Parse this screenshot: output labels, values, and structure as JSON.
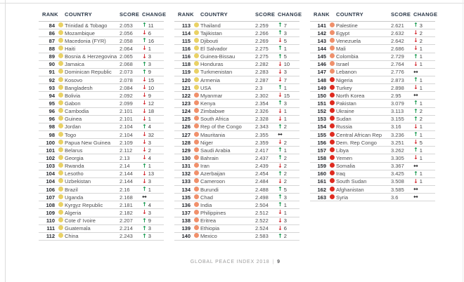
{
  "footer": {
    "title": "GLOBAL PEACE INDEX 2018",
    "separator": "|",
    "page_number": "9"
  },
  "colors": {
    "header_text": "#2b3848",
    "band_medium": "#e9d165",
    "band_low": "#f0906b",
    "band_very_low": "#df2a1f",
    "change_up": "#0f9649",
    "change_down": "#d2232a",
    "change_steady": "#2a2a2c"
  },
  "table": {
    "headers": [
      "RANK",
      "COUNTRY",
      "SCORE",
      "CHANGE"
    ],
    "arrow_glyphs": {
      "up": "↑",
      "down": "↓",
      "steady": "↔"
    },
    "columns": [
      {
        "rows": [
          {
            "rank": "84",
            "country": "Trinidad & Tobago",
            "score": "2.053",
            "change_dir": "up",
            "change_value": "11",
            "band": "medium"
          },
          {
            "rank": "86",
            "country": "Mozambique",
            "score": "2.056",
            "change_dir": "down",
            "change_value": "6",
            "band": "medium"
          },
          {
            "rank": "87",
            "country": "Macedonia (FYR)",
            "score": "2.058",
            "change_dir": "up",
            "change_value": "16",
            "band": "medium"
          },
          {
            "rank": "88",
            "country": "Haiti",
            "score": "2.064",
            "change_dir": "down",
            "change_value": "1",
            "band": "medium"
          },
          {
            "rank": "89",
            "country": "Bosnia & Herzegovina",
            "score": "2.065",
            "change_dir": "down",
            "change_value": "3",
            "band": "medium"
          },
          {
            "rank": "90",
            "country": "Jamaica",
            "score": "2.068",
            "change_dir": "up",
            "change_value": "3",
            "band": "medium"
          },
          {
            "rank": "91",
            "country": "Dominican Republic",
            "score": "2.073",
            "change_dir": "up",
            "change_value": "9",
            "band": "medium"
          },
          {
            "rank": "92",
            "country": "Kosovo",
            "score": "2.078",
            "change_dir": "down",
            "change_value": "15",
            "band": "medium"
          },
          {
            "rank": "93",
            "country": "Bangladesh",
            "score": "2.084",
            "change_dir": "down",
            "change_value": "10",
            "band": "medium"
          },
          {
            "rank": "94",
            "country": "Bolivia",
            "score": "2.092",
            "change_dir": "down",
            "change_value": "9",
            "band": "medium"
          },
          {
            "rank": "95",
            "country": "Gabon",
            "score": "2.099",
            "change_dir": "down",
            "change_value": "12",
            "band": "medium"
          },
          {
            "rank": "96",
            "country": "Cambodia",
            "score": "2.101",
            "change_dir": "down",
            "change_value": "18",
            "band": "medium"
          },
          {
            "rank": "96",
            "country": "Guinea",
            "score": "2.101",
            "change_dir": "down",
            "change_value": "1",
            "band": "medium"
          },
          {
            "rank": "98",
            "country": "Jordan",
            "score": "2.104",
            "change_dir": "up",
            "change_value": "4",
            "band": "medium"
          },
          {
            "rank": "98",
            "country": "Togo",
            "score": "2.104",
            "change_dir": "down",
            "change_value": "32",
            "band": "medium"
          },
          {
            "rank": "100",
            "country": "Papua New Guinea",
            "score": "2.109",
            "change_dir": "down",
            "change_value": "3",
            "band": "medium"
          },
          {
            "rank": "101",
            "country": "Belarus",
            "score": "2.112",
            "change_dir": "down",
            "change_value": "2",
            "band": "medium"
          },
          {
            "rank": "102",
            "country": "Georgia",
            "score": "2.13",
            "change_dir": "down",
            "change_value": "4",
            "band": "medium"
          },
          {
            "rank": "103",
            "country": "Rwanda",
            "score": "2.14",
            "change_dir": "up",
            "change_value": "1",
            "band": "medium"
          },
          {
            "rank": "104",
            "country": "Lesotho",
            "score": "2.144",
            "change_dir": "down",
            "change_value": "13",
            "band": "medium"
          },
          {
            "rank": "104",
            "country": "Uzbekistan",
            "score": "2.144",
            "change_dir": "down",
            "change_value": "3",
            "band": "medium"
          },
          {
            "rank": "106",
            "country": "Brazil",
            "score": "2.16",
            "change_dir": "up",
            "change_value": "1",
            "band": "medium"
          },
          {
            "rank": "107",
            "country": "Uganda",
            "score": "2.168",
            "change_dir": "steady",
            "change_value": "",
            "band": "medium"
          },
          {
            "rank": "108",
            "country": "Kyrgyz Republic",
            "score": "2.181",
            "change_dir": "up",
            "change_value": "4",
            "band": "medium"
          },
          {
            "rank": "109",
            "country": "Algeria",
            "score": "2.182",
            "change_dir": "down",
            "change_value": "3",
            "band": "medium"
          },
          {
            "rank": "110",
            "country": "Cote d' Ivoire",
            "score": "2.207",
            "change_dir": "up",
            "change_value": "9",
            "band": "medium"
          },
          {
            "rank": "111",
            "country": "Guatemala",
            "score": "2.214",
            "change_dir": "up",
            "change_value": "3",
            "band": "medium"
          },
          {
            "rank": "112",
            "country": "China",
            "score": "2.243",
            "change_dir": "up",
            "change_value": "3",
            "band": "medium"
          }
        ]
      },
      {
        "rows": [
          {
            "rank": "113",
            "country": "Thailand",
            "score": "2.259",
            "change_dir": "up",
            "change_value": "7",
            "band": "medium"
          },
          {
            "rank": "114",
            "country": "Tajikistan",
            "score": "2.266",
            "change_dir": "up",
            "change_value": "3",
            "band": "medium"
          },
          {
            "rank": "115",
            "country": "Djibouti",
            "score": "2.269",
            "change_dir": "down",
            "change_value": "5",
            "band": "medium"
          },
          {
            "rank": "116",
            "country": "El Salvador",
            "score": "2.275",
            "change_dir": "up",
            "change_value": "1",
            "band": "medium"
          },
          {
            "rank": "116",
            "country": "Guinea-Bissau",
            "score": "2.275",
            "change_dir": "up",
            "change_value": "5",
            "band": "medium"
          },
          {
            "rank": "118",
            "country": "Honduras",
            "score": "2.282",
            "change_dir": "down",
            "change_value": "10",
            "band": "medium"
          },
          {
            "rank": "119",
            "country": "Turkmenistan",
            "score": "2.283",
            "change_dir": "down",
            "change_value": "3",
            "band": "medium"
          },
          {
            "rank": "120",
            "country": "Armenia",
            "score": "2.287",
            "change_dir": "down",
            "change_value": "7",
            "band": "medium"
          },
          {
            "rank": "121",
            "country": "USA",
            "score": "2.3",
            "change_dir": "up",
            "change_value": "1",
            "band": "medium"
          },
          {
            "rank": "122",
            "country": "Myanmar",
            "score": "2.302",
            "change_dir": "down",
            "change_value": "15",
            "band": "low"
          },
          {
            "rank": "123",
            "country": "Kenya",
            "score": "2.354",
            "change_dir": "up",
            "change_value": "3",
            "band": "low"
          },
          {
            "rank": "124",
            "country": "Zimbabwe",
            "score": "2.326",
            "change_dir": "down",
            "change_value": "1",
            "band": "low"
          },
          {
            "rank": "125",
            "country": "South Africa",
            "score": "2.328",
            "change_dir": "down",
            "change_value": "1",
            "band": "low"
          },
          {
            "rank": "126",
            "country": "Rep of the Congo",
            "score": "2.343",
            "change_dir": "up",
            "change_value": "2",
            "band": "low"
          },
          {
            "rank": "127",
            "country": "Mauritania",
            "score": "2.355",
            "change_dir": "steady",
            "change_value": "",
            "band": "low"
          },
          {
            "rank": "128",
            "country": "Niger",
            "score": "2.359",
            "change_dir": "down",
            "change_value": "2",
            "band": "low"
          },
          {
            "rank": "129",
            "country": "Saudi Arabia",
            "score": "2.417",
            "change_dir": "up",
            "change_value": "1",
            "band": "low"
          },
          {
            "rank": "130",
            "country": "Bahrain",
            "score": "2.437",
            "change_dir": "up",
            "change_value": "2",
            "band": "low"
          },
          {
            "rank": "131",
            "country": "Iran",
            "score": "2.439",
            "change_dir": "down",
            "change_value": "2",
            "band": "low"
          },
          {
            "rank": "132",
            "country": "Azerbaijan",
            "score": "2.454",
            "change_dir": "up",
            "change_value": "2",
            "band": "low"
          },
          {
            "rank": "133",
            "country": "Cameroon",
            "score": "2.484",
            "change_dir": "down",
            "change_value": "2",
            "band": "low"
          },
          {
            "rank": "134",
            "country": "Burundi",
            "score": "2.488",
            "change_dir": "up",
            "change_value": "5",
            "band": "low"
          },
          {
            "rank": "135",
            "country": "Chad",
            "score": "2.498",
            "change_dir": "up",
            "change_value": "3",
            "band": "low"
          },
          {
            "rank": "136",
            "country": "India",
            "score": "2.504",
            "change_dir": "up",
            "change_value": "1",
            "band": "low"
          },
          {
            "rank": "137",
            "country": "Philippines",
            "score": "2.512",
            "change_dir": "down",
            "change_value": "1",
            "band": "low"
          },
          {
            "rank": "138",
            "country": "Eritrea",
            "score": "2.522",
            "change_dir": "down",
            "change_value": "3",
            "band": "low"
          },
          {
            "rank": "139",
            "country": "Ethiopia",
            "score": "2.524",
            "change_dir": "down",
            "change_value": "6",
            "band": "low"
          },
          {
            "rank": "140",
            "country": "Mexico",
            "score": "2.583",
            "change_dir": "up",
            "change_value": "2",
            "band": "low"
          }
        ]
      },
      {
        "rows": [
          {
            "rank": "141",
            "country": "Palestine",
            "score": "2.621",
            "change_dir": "up",
            "change_value": "3",
            "band": "low"
          },
          {
            "rank": "142",
            "country": "Egypt",
            "score": "2.632",
            "change_dir": "down",
            "change_value": "2",
            "band": "low"
          },
          {
            "rank": "143",
            "country": "Venezuela",
            "score": "2.642",
            "change_dir": "down",
            "change_value": "2",
            "band": "low"
          },
          {
            "rank": "144",
            "country": "Mali",
            "score": "2.686",
            "change_dir": "down",
            "change_value": "1",
            "band": "low"
          },
          {
            "rank": "145",
            "country": "Colombia",
            "score": "2.729",
            "change_dir": "up",
            "change_value": "1",
            "band": "low"
          },
          {
            "rank": "146",
            "country": "Israel",
            "score": "2.764",
            "change_dir": "down",
            "change_value": "1",
            "band": "low"
          },
          {
            "rank": "147",
            "country": "Lebanon",
            "score": "2.776",
            "change_dir": "steady",
            "change_value": "",
            "band": "low"
          },
          {
            "rank": "148",
            "country": "Nigeria",
            "score": "2.873",
            "change_dir": "up",
            "change_value": "1",
            "band": "very_low"
          },
          {
            "rank": "149",
            "country": "Turkey",
            "score": "2.898",
            "change_dir": "down",
            "change_value": "1",
            "band": "very_low"
          },
          {
            "rank": "150",
            "country": "North Korea",
            "score": "2.95",
            "change_dir": "steady",
            "change_value": "",
            "band": "very_low"
          },
          {
            "rank": "151",
            "country": "Pakistan",
            "score": "3.079",
            "change_dir": "up",
            "change_value": "1",
            "band": "very_low"
          },
          {
            "rank": "152",
            "country": "Ukraine",
            "score": "3.113",
            "change_dir": "up",
            "change_value": "2",
            "band": "very_low"
          },
          {
            "rank": "153",
            "country": "Sudan",
            "score": "3.155",
            "change_dir": "up",
            "change_value": "2",
            "band": "very_low"
          },
          {
            "rank": "154",
            "country": "Russia",
            "score": "3.16",
            "change_dir": "down",
            "change_value": "1",
            "band": "very_low"
          },
          {
            "rank": "155",
            "country": "Central African Rep",
            "score": "3.236",
            "change_dir": "up",
            "change_value": "1",
            "band": "very_low"
          },
          {
            "rank": "156",
            "country": "Dem. Rep Congo",
            "score": "3.251",
            "change_dir": "down",
            "change_value": "5",
            "band": "very_low"
          },
          {
            "rank": "157",
            "country": "Libya",
            "score": "3.262",
            "change_dir": "up",
            "change_value": "1",
            "band": "very_low"
          },
          {
            "rank": "158",
            "country": "Yemen",
            "score": "3.305",
            "change_dir": "down",
            "change_value": "1",
            "band": "very_low"
          },
          {
            "rank": "159",
            "country": "Somalia",
            "score": "3.367",
            "change_dir": "steady",
            "change_value": "",
            "band": "very_low"
          },
          {
            "rank": "160",
            "country": "Iraq",
            "score": "3.425",
            "change_dir": "up",
            "change_value": "1",
            "band": "very_low"
          },
          {
            "rank": "161",
            "country": "South Sudan",
            "score": "3.508",
            "change_dir": "down",
            "change_value": "1",
            "band": "very_low"
          },
          {
            "rank": "162",
            "country": "Afghanistan",
            "score": "3.585",
            "change_dir": "steady",
            "change_value": "",
            "band": "very_low"
          },
          {
            "rank": "163",
            "country": "Syria",
            "score": "3.6",
            "change_dir": "steady",
            "change_value": "",
            "band": "very_low"
          }
        ]
      }
    ]
  }
}
